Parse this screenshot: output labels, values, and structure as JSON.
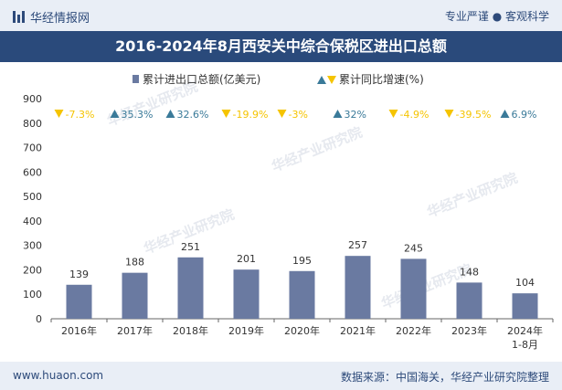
{
  "header": {
    "brand": "华经情报网",
    "slogan": "专业严谨 ● 客观科学"
  },
  "chart_data": {
    "type": "bar",
    "title": "2016-2024年8月西安关中综合保税区进出口总额",
    "categories": [
      "2016年",
      "2017年",
      "2018年",
      "2019年",
      "2020年",
      "2021年",
      "2022年",
      "2023年",
      "2024年\n1-8月"
    ],
    "series": [
      {
        "name": "累计进出口总额(亿美元)",
        "values": [
          139,
          188,
          251,
          201,
          195,
          257,
          245,
          148,
          104
        ]
      },
      {
        "name": "累计同比增速(%)",
        "values": [
          -7.3,
          35.3,
          32.6,
          -19.9,
          -3,
          32,
          -4.9,
          -39.5,
          6.9
        ]
      }
    ],
    "growth_labels": [
      "-7.3%",
      "35.3%",
      "32.6%",
      "-19.9%",
      "-3%",
      "32%",
      "-4.9%",
      "-39.5%",
      "6.9%"
    ],
    "ylim": [
      0,
      900
    ],
    "yticks": [
      0,
      100,
      200,
      300,
      400,
      500,
      600,
      700,
      800,
      900
    ],
    "legend": "top-center",
    "colors": {
      "bar": "#6a7aa1",
      "up": "#3a7a99",
      "down": "#f5c400"
    },
    "watermark": "华经产业研究院"
  },
  "footer": {
    "site": "www.huaon.com",
    "source": "数据来源：中国海关，华经产业研究院整理"
  }
}
